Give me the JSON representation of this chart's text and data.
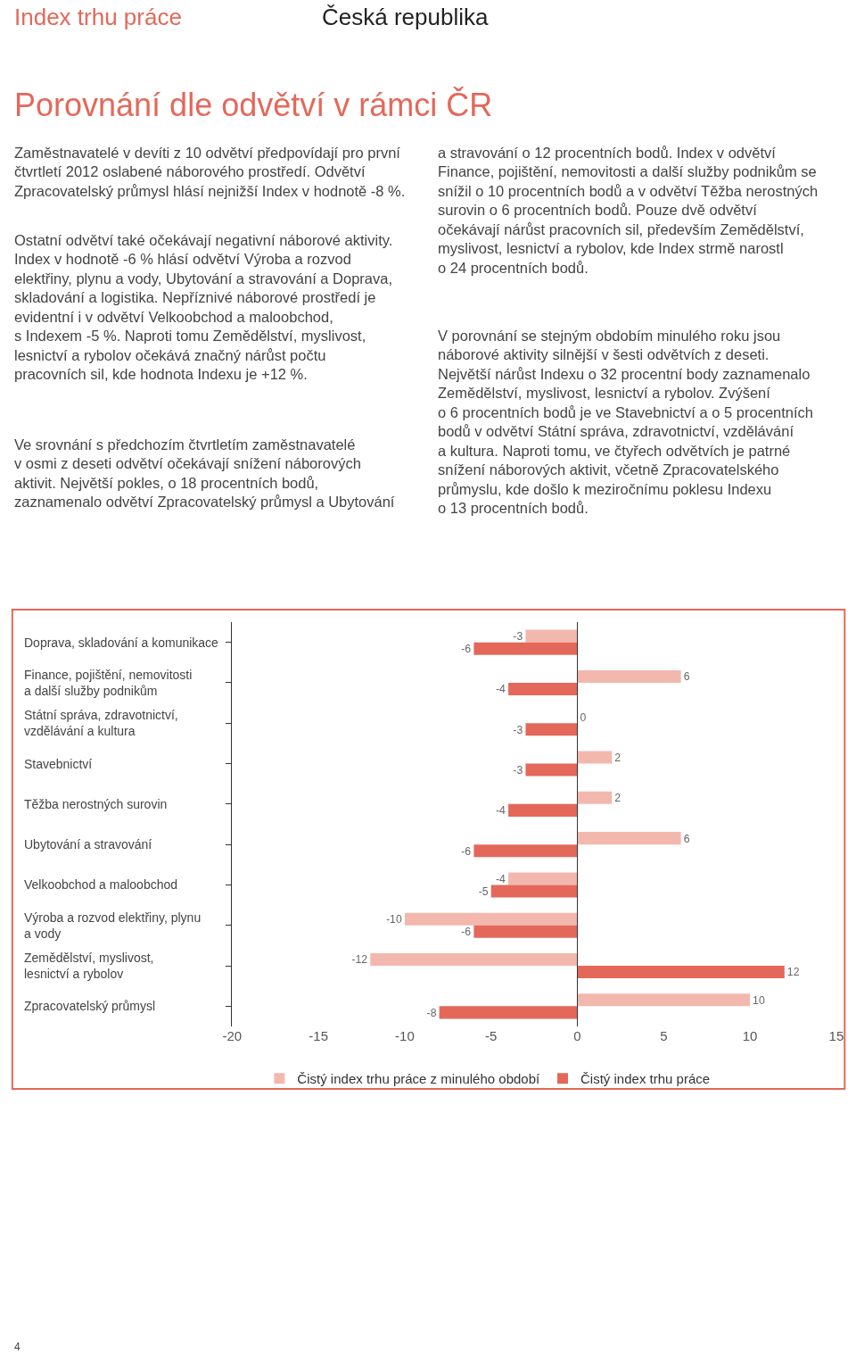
{
  "chart_data": {
    "type": "bar",
    "orientation": "horizontal",
    "title": "Porovnání dle odvětví v rámci ČR",
    "categories": [
      "Doprava, skladování a komunikace",
      "Finance, pojištění, nemovitosti a další služby podnikům",
      "Státní správa, zdravotnictví, vzdělávání a kultura",
      "Stavebnictví",
      "Těžba nerostných surovin",
      "Ubytování a stravování",
      "Velkoobchod a maloobchod",
      "Výroba a rozvod elektřiny, plynu a vody",
      "Zemědělství, myslivost, lesnictví a rybolov",
      "Zpracovatelský průmysl"
    ],
    "series": [
      {
        "name": "Čistý index trhu práce z minulého období",
        "color": "#f2b8ad",
        "values": [
          -3,
          6,
          0,
          2,
          2,
          6,
          -4,
          -10,
          -12,
          10
        ]
      },
      {
        "name": "Čistý index trhu práce",
        "color": "#e4685a",
        "values": [
          -6,
          -4,
          -3,
          -3,
          -4,
          -6,
          -5,
          -6,
          12,
          -8
        ]
      }
    ],
    "xlim": [
      -20,
      15
    ],
    "xticks": [
      -20,
      -15,
      -10,
      -5,
      0,
      5,
      10,
      15
    ],
    "ref_lines": [
      {
        "axis": "x",
        "value": 0,
        "color": "#333333"
      }
    ],
    "data_labels": true,
    "legend": "bottom",
    "annotations": [
      "Index trhu práce",
      "Česká republika",
      "Zaměstnavatelé v devíti z 10 odvětví předpovídají pro první\nčtvrtletí 2012 oslabené náborového prostředí. Odvětví\nZpracovatelský průmysl hlásí nejnižší Index v hodnotě -8 %.",
      "Ostatní odvětví také očekávají negativní náborové aktivity.\nIndex v hodnotě -6 % hlásí odvětví Výroba a rozvod\nelektřiny, plynu a vody, Ubytování a stravování a Doprava,\nskladování a logistika. Nepříznivé náborové prostředí je\nevidentní i v odvětví Velkoobchod a maloobchod,\ns Indexem -5 %. Naproti tomu Zemědělství, myslivost,\nlesnictví a rybolov očekává značný nárůst počtu\npracovních sil, kde hodnota Indexu je +12 %.",
      "Ve srovnání s předchozím čtvrtletím zaměstnavatelé\nv osmi z deseti odvětví očekávají snížení náborových\naktivit. Největší pokles, o 18 procentních bodů,\nzaznamenalo odvětví Zpracovatelský průmysl a Ubytování",
      "a stravování o 12 procentních bodů. Index v odvětví\nFinance, pojištění, nemovitosti a další služby podnikům se\nsnížil o 10 procentních bodů a v odvětví Těžba nerostných\nsurovin o 6 procentních bodů. Pouze dvě odvětví\nočekávají nárůst pracovních sil, především Zemědělství,\nmyslivost, lesnictví a rybolov, kde Index strmě narostl\no 24 procentních bodů.",
      "V porovnání se stejným obdobím minulého roku jsou\nnáborové aktivity silnější v šesti odvětvích z deseti.\nNejvětší nárůst Indexu o 32 procentní body zaznamenalo\nZemědělství, myslivost, lesnictví a rybolov. Zvýšení\no 6 procentních bodů je ve Stavebnictví a o 5 procentních\nbodů v odvětví Státní správa, zdravotnictví, vzdělávání\na kultura. Naproti tomu, ve čtyřech odvětvích je patrné\nsnížení náborových aktivit, včetně Zpracovatelského\nprůmyslu, kde došlo k meziročnímu poklesu Indexu\no 13 procentních bodů.",
      "4"
    ]
  }
}
